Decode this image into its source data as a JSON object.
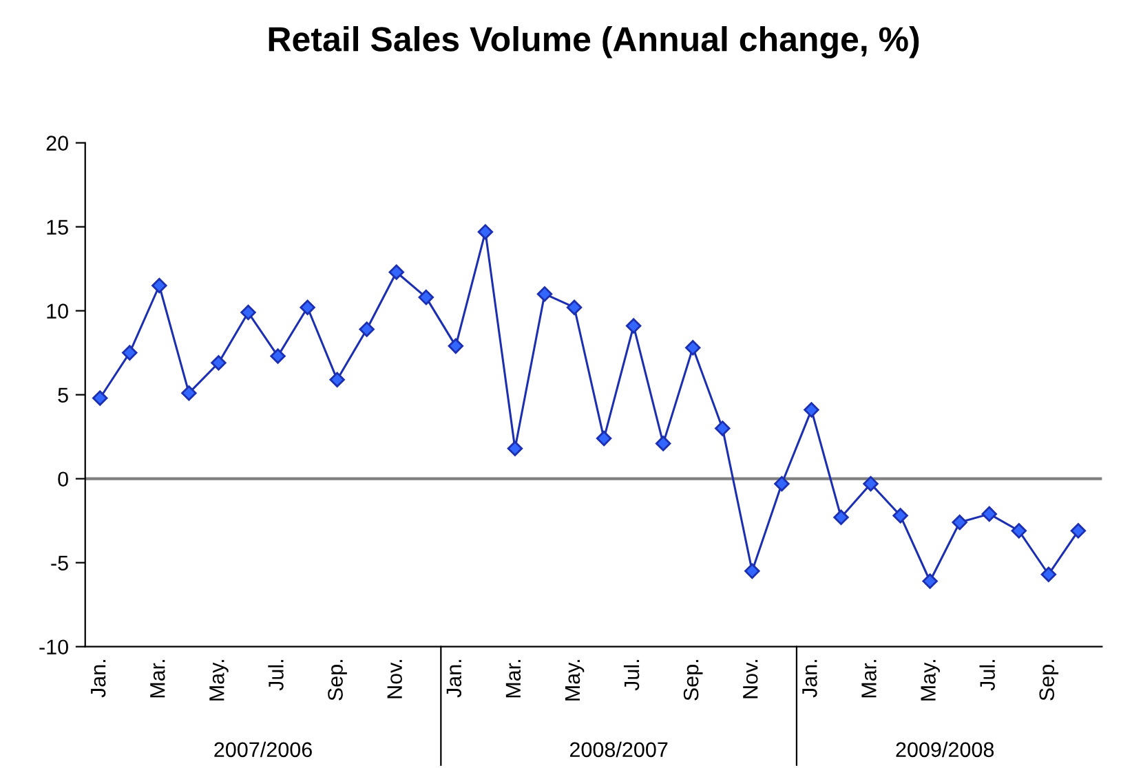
{
  "chart_data": {
    "type": "line",
    "title": "Retail Sales Volume (Annual change, %)",
    "categories": [
      "Jan.",
      null,
      "Mar.",
      null,
      "May.",
      null,
      "Jul.",
      null,
      "Sep.",
      null,
      "Nov.",
      null,
      "Jan.",
      null,
      "Mar.",
      null,
      "May.",
      null,
      "Jul.",
      null,
      "Sep.",
      null,
      "Nov.",
      null,
      "Jan.",
      null,
      "Mar.",
      null,
      "May.",
      null,
      "Jul.",
      null,
      "Sep.",
      null
    ],
    "series": [
      {
        "color": "#1c2fb0",
        "values": [
          4.8,
          7.5,
          11.5,
          5.1,
          6.9,
          9.9,
          7.3,
          10.2,
          5.9,
          8.9,
          12.3,
          10.8,
          7.9,
          14.7,
          1.8,
          11.0,
          10.2,
          2.4,
          9.1,
          2.1,
          7.8,
          3.0,
          -5.5,
          -0.3,
          4.1,
          -2.3,
          -0.3,
          -2.2,
          -6.1,
          -2.6,
          -2.1,
          -3.1,
          -5.7,
          -3.1
        ]
      }
    ],
    "annotations": [
      "2007/2006",
      "2008/2007",
      "2009/2008"
    ],
    "ref_lines": [
      {
        "axis": "y",
        "value": 0,
        "color": "#808080"
      }
    ],
    "ylim": [
      -10,
      20
    ],
    "yticks": [
      -10,
      -5,
      0,
      5,
      10,
      15,
      20
    ],
    "marker": "diamond",
    "line_style": "solid",
    "grid": false,
    "legend": false
  }
}
